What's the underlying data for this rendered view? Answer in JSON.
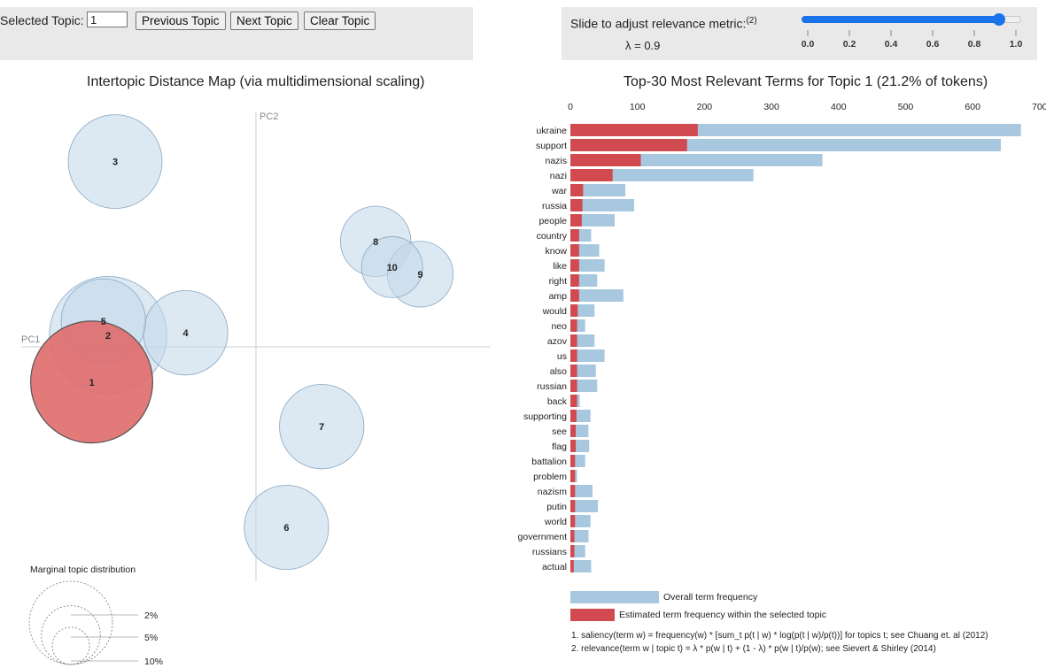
{
  "controls": {
    "selected_topic_label": "Selected Topic:",
    "selected_topic_value": "1",
    "prev_label": "Previous Topic",
    "next_label": "Next Topic",
    "clear_label": "Clear Topic",
    "slider_label": "Slide to adjust relevance metric:",
    "slider_footnote": "(2)",
    "lambda_text": "λ = 0.9",
    "lambda_value": 0.9,
    "slider_ticks": [
      "0.0",
      "0.2",
      "0.4",
      "0.6",
      "0.8",
      "1.0"
    ]
  },
  "colors": {
    "overall": "#a8c8e0",
    "selected": "#d14a4f",
    "topic_fill": "#c5d9ea",
    "topic_selected": "#e06c6c",
    "slider": "#1a73e8"
  },
  "chart_data": [
    {
      "type": "scatter",
      "title": "Intertopic Distance Map (via multidimensional scaling)",
      "xlabel": "PC1",
      "ylabel": "PC2",
      "selected_topic": 1,
      "note": "bubble x/y/r are read approximately off the unlabeled axes; PC1 axis spans x in [-1, 1], PC2 axis spans y in [-1, 1]",
      "points": [
        {
          "label": "1",
          "x": -0.7,
          "y": -0.15,
          "r": 0.26
        },
        {
          "label": "2",
          "x": -0.63,
          "y": 0.05,
          "r": 0.25
        },
        {
          "label": "3",
          "x": -0.6,
          "y": 0.79,
          "r": 0.2
        },
        {
          "label": "4",
          "x": -0.3,
          "y": 0.06,
          "r": 0.18
        },
        {
          "label": "5",
          "x": -0.65,
          "y": 0.11,
          "r": 0.18
        },
        {
          "label": "6",
          "x": 0.13,
          "y": -0.77,
          "r": 0.18
        },
        {
          "label": "7",
          "x": 0.28,
          "y": -0.34,
          "r": 0.18
        },
        {
          "label": "8",
          "x": 0.51,
          "y": 0.45,
          "r": 0.15
        },
        {
          "label": "9",
          "x": 0.7,
          "y": 0.31,
          "r": 0.14
        },
        {
          "label": "10",
          "x": 0.58,
          "y": 0.34,
          "r": 0.13
        }
      ],
      "legend": {
        "title": "Marginal topic distribution",
        "items": [
          {
            "label": "2%",
            "value": 2
          },
          {
            "label": "5%",
            "value": 5
          },
          {
            "label": "10%",
            "value": 10
          }
        ]
      }
    },
    {
      "type": "bar",
      "orientation": "horizontal",
      "title": "Top-30 Most Relevant Terms for Topic 1 (21.2% of tokens)",
      "xlim": [
        0,
        700
      ],
      "xticks": [
        "0",
        "100",
        "200",
        "300",
        "400",
        "500",
        "600",
        "700"
      ],
      "categories": [
        "ukraine",
        "support",
        "nazis",
        "nazi",
        "war",
        "russia",
        "people",
        "country",
        "know",
        "like",
        "right",
        "amp",
        "would",
        "neo",
        "azov",
        "us",
        "also",
        "russian",
        "back",
        "supporting",
        "see",
        "flag",
        "battalion",
        "problem",
        "nazism",
        "putin",
        "world",
        "government",
        "russians",
        "actual"
      ],
      "series": [
        {
          "name": "Overall term frequency",
          "values": [
            672,
            642,
            376,
            273,
            82,
            95,
            66,
            31,
            43,
            51,
            40,
            79,
            36,
            22,
            36,
            51,
            38,
            40,
            14,
            30,
            27,
            28,
            22,
            10,
            33,
            41,
            30,
            27,
            22,
            31
          ]
        },
        {
          "name": "Estimated term frequency within the selected topic",
          "values": [
            190,
            174,
            105,
            63,
            19,
            18,
            17,
            13,
            13,
            13,
            13,
            13,
            11,
            10,
            10,
            10,
            10,
            10,
            10,
            9,
            8,
            8,
            7,
            7,
            7,
            7,
            7,
            6,
            6,
            5
          ]
        }
      ]
    }
  ],
  "footnotes": {
    "line1": "1. saliency(term w) = frequency(w) * [sum_t p(t | w) * log(p(t | w)/p(t))] for topics t; see Chuang et. al (2012)",
    "line2": "2. relevance(term w | topic t) = λ * p(w | t) + (1 - λ) * p(w | t)/p(w); see Sievert & Shirley (2014)"
  }
}
